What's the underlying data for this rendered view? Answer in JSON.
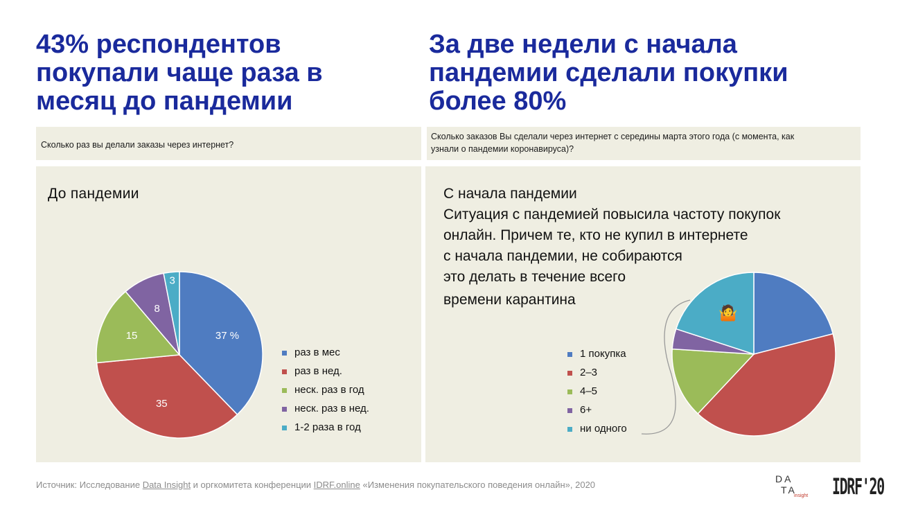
{
  "left": {
    "headline": [
      "43% респондентов",
      "покупали чаще раза в",
      "месяц до пандемии"
    ],
    "question": "Сколько раз вы делали заказы через интернет?",
    "heading": "До пандемии"
  },
  "right": {
    "headline": [
      "За две недели с начала",
      "пандемии сделали покупки",
      "более 80%"
    ],
    "question": [
      "Сколько заказов Вы сделали через интернет с середины марта этого года (с момента, как",
      "узнали о пандемии коронавируса)?"
    ],
    "heading": "С начала пандемии",
    "note": [
      "Ситуация с пандемией повысила частоту покупок",
      "онлайн. Причем те, кто не купил в интернете",
      "с начала пандемии, не собираются",
      "это делать в течение всего",
      "времени карантина"
    ],
    "emoji": "🤷"
  },
  "chart_data": [
    {
      "type": "pie",
      "title": "До пандемии",
      "categories": [
        "раз в мес",
        "раз в нед.",
        "неск. раз в год",
        "неск. раз в нед.",
        "1-2 раза в год"
      ],
      "values": [
        37,
        35,
        15,
        8,
        3
      ],
      "data_labels": [
        "37 %",
        "35",
        "15",
        "8",
        "3"
      ],
      "colors": [
        "#4f7cc1",
        "#c0504d",
        "#9bbb59",
        "#8064a2",
        "#4bacc6"
      ],
      "legend": "right"
    },
    {
      "type": "pie",
      "title": "С начала пандемии",
      "categories": [
        "1 покупка",
        "2–3",
        "4–5",
        "6+",
        "ни одного"
      ],
      "values": [
        21,
        41,
        14,
        4,
        20
      ],
      "colors": [
        "#4f7cc1",
        "#c0504d",
        "#9bbb59",
        "#8064a2",
        "#4bacc6"
      ],
      "legend": "left"
    }
  ],
  "footer": {
    "prefix": "Источник: Исследование ",
    "link1": "Data Insight",
    "middle": " и оргкомитета конференции ",
    "link2": "IDRF.online",
    "suffix": " «Изменения покупательского поведения онлайн»,  2020"
  },
  "logos": {
    "di_row1": "DA",
    "di_row2": "TA",
    "di_small": "insight",
    "idrf": "IDRF'20"
  }
}
